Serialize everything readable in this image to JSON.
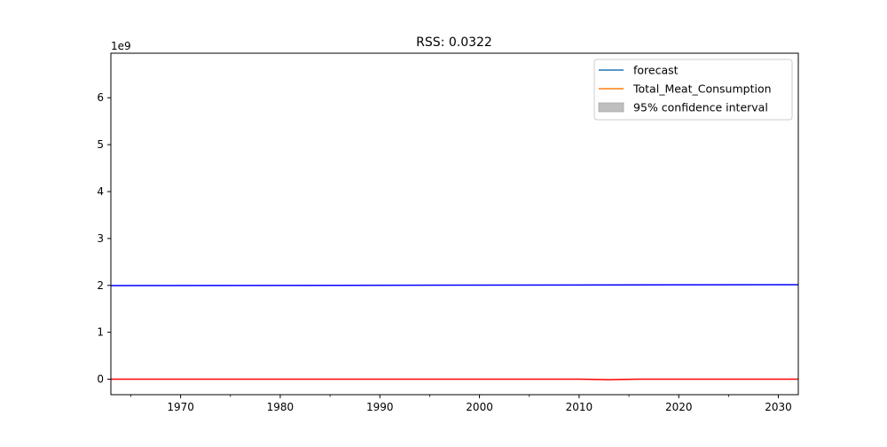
{
  "chart_data": {
    "type": "line",
    "title": "RSS: 0.0322",
    "xlabel": "",
    "ylabel": "",
    "offset_label": "1e9",
    "xlim": [
      1963,
      2032
    ],
    "ylim": [
      -0.33,
      6.95
    ],
    "x_ticks": [
      1970,
      1980,
      1990,
      2000,
      2010,
      2020,
      2030
    ],
    "x_minor_ticks": [
      1965,
      1975,
      1985,
      1995,
      2005,
      2015,
      2025
    ],
    "y_ticks": [
      0,
      1,
      2,
      3,
      4,
      5,
      6
    ],
    "grid": false,
    "legend_position": "top-right",
    "legend": [
      {
        "label": "forecast",
        "color": "#1f77b4",
        "kind": "line"
      },
      {
        "label": "Total_Meat_Consumption",
        "color": "#ff7f0e",
        "kind": "line"
      },
      {
        "label": "95% confidence interval",
        "color": "#bfbfbf",
        "kind": "patch"
      }
    ],
    "series": [
      {
        "color": "#0000ff",
        "x": [
          1963,
          2032
        ],
        "y": [
          1.995,
          2.015
        ]
      },
      {
        "color": "#ff0000",
        "x": [
          1963,
          2010,
          2012,
          2013,
          2014,
          2016,
          2032
        ],
        "y": [
          0.002,
          0.002,
          -0.006,
          -0.012,
          -0.006,
          0.002,
          0.002
        ]
      }
    ]
  }
}
